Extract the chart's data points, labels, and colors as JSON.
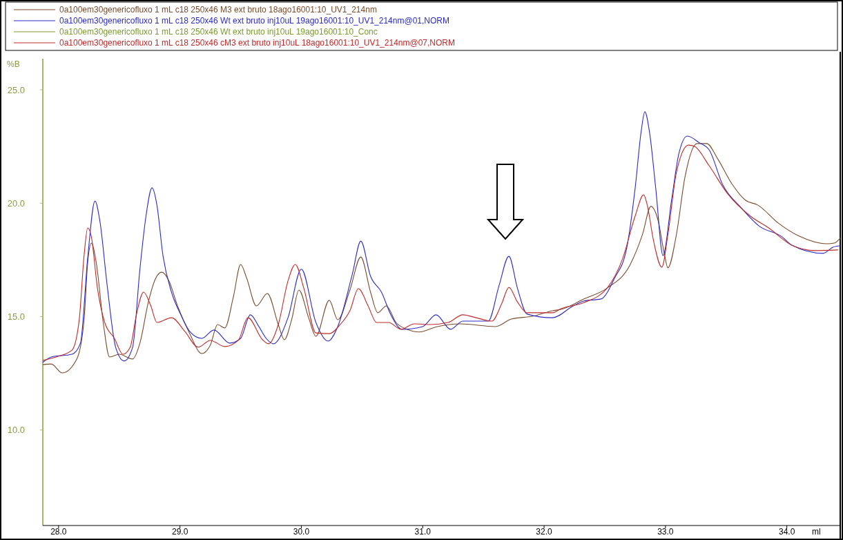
{
  "chart_data": {
    "type": "line",
    "xlabel": "ml",
    "ylabel": "%B",
    "xlim": [
      27.87,
      34.44
    ],
    "xticks": [
      {
        "value": 28,
        "label": "28.0"
      },
      {
        "value": 29,
        "label": "29.0"
      },
      {
        "value": 30,
        "label": "30.0"
      },
      {
        "value": 31,
        "label": "31.0"
      },
      {
        "value": 32,
        "label": "32.0"
      },
      {
        "value": 33,
        "label": "33.0"
      },
      {
        "value": 34,
        "label": "34.0"
      }
    ],
    "ylim": [
      5.79,
      26.37
    ],
    "yticks": [
      {
        "value": 10,
        "label": "10.0"
      },
      {
        "value": 15,
        "label": "15.0"
      },
      {
        "value": 20,
        "label": "20.0"
      },
      {
        "value": 25,
        "label": "25.0"
      }
    ],
    "legend": "top",
    "grid": false,
    "marker": "none",
    "line_style": "solid",
    "series": [
      {
        "name": "0a100em30genericofluxo 1 mL c18 250x46 M3 ext bruto 18ago16001:10_UV1_214nm",
        "color": "#7a4a2c",
        "x": [
          27.87,
          27.94,
          28.03,
          28.15,
          28.21,
          28.24,
          28.27,
          28.31,
          28.37,
          28.42,
          28.5,
          28.61,
          28.67,
          28.74,
          28.8,
          28.85,
          28.91,
          28.98,
          29.08,
          29.18,
          29.25,
          29.31,
          29.37,
          29.44,
          29.5,
          29.55,
          29.63,
          29.72,
          29.81,
          29.86,
          29.92,
          29.98,
          30.06,
          30.12,
          30.23,
          30.3,
          30.4,
          30.49,
          30.57,
          30.63,
          30.7,
          30.78,
          30.87,
          30.97,
          31.12,
          31.31,
          31.6,
          31.73,
          31.91,
          32.07,
          32.14,
          32.33,
          32.52,
          32.71,
          32.81,
          32.88,
          32.94,
          32.99,
          33.02,
          33.09,
          33.16,
          33.26,
          33.34,
          33.43,
          33.55,
          33.66,
          33.76,
          33.93,
          34.1,
          34.33,
          34.39,
          34.44
        ],
        "values": [
          12.88,
          12.91,
          12.52,
          13.13,
          14.86,
          17.39,
          18.24,
          17.39,
          14.65,
          13.22,
          13.34,
          13.13,
          13.83,
          15.65,
          16.69,
          16.96,
          16.57,
          15.47,
          14.25,
          13.37,
          13.74,
          14.65,
          14.5,
          15.87,
          17.3,
          16.69,
          15.47,
          16.02,
          14.65,
          13.98,
          14.86,
          16.17,
          14.95,
          14.13,
          15.72,
          14.86,
          16.17,
          17.63,
          16.08,
          15.17,
          15.47,
          14.74,
          14.44,
          14.32,
          14.56,
          14.68,
          14.56,
          14.89,
          15.02,
          15.26,
          15.32,
          15.78,
          16.26,
          17.3,
          18.61,
          19.86,
          19.22,
          17.79,
          17.15,
          18.61,
          21.13,
          22.63,
          22.63,
          21.96,
          20.83,
          20.13,
          19.92,
          19.12,
          18.55,
          18.21,
          18.24,
          18.46
        ]
      },
      {
        "name": "0a100em30genericofluxo 1 mL c18 250x46 Wt ext bruto inj10uL 19ago16001:10_UV1_214nm@01,NORM",
        "color": "#2a2ac8",
        "x": [
          27.87,
          27.94,
          28.11,
          28.18,
          28.24,
          28.3,
          28.34,
          28.4,
          28.47,
          28.54,
          28.61,
          28.67,
          28.72,
          28.77,
          28.81,
          28.86,
          28.93,
          29.01,
          29.08,
          29.18,
          29.28,
          29.41,
          29.5,
          29.58,
          29.65,
          29.71,
          29.77,
          29.89,
          30.0,
          30.12,
          30.22,
          30.3,
          30.42,
          30.49,
          30.57,
          30.66,
          30.74,
          30.83,
          31.0,
          31.11,
          31.23,
          31.33,
          31.54,
          31.63,
          31.71,
          31.78,
          31.86,
          32.07,
          32.24,
          32.33,
          32.47,
          32.58,
          32.68,
          32.75,
          32.8,
          32.83,
          32.87,
          32.92,
          32.98,
          33.05,
          33.11,
          33.18,
          33.28,
          33.36,
          33.47,
          33.62,
          33.77,
          33.96,
          34.04,
          34.3,
          34.38,
          34.44
        ],
        "values": [
          12.98,
          13.22,
          13.34,
          13.83,
          17.6,
          20.1,
          19.22,
          16.39,
          13.65,
          13.04,
          13.65,
          17.09,
          19.43,
          20.68,
          19.92,
          17.69,
          16.08,
          15.05,
          14.35,
          14.04,
          14.41,
          13.83,
          14.04,
          15.08,
          14.56,
          14.04,
          13.8,
          14.95,
          17.09,
          14.74,
          13.92,
          14.56,
          16.87,
          18.33,
          16.78,
          16.08,
          15.05,
          14.44,
          14.56,
          15.08,
          14.44,
          14.8,
          14.8,
          16.39,
          17.66,
          16.26,
          15.11,
          14.95,
          15.47,
          15.69,
          15.78,
          16.69,
          18.0,
          20.65,
          23.17,
          24.03,
          23.08,
          20.65,
          17.69,
          20.13,
          22.17,
          22.96,
          22.66,
          22.35,
          20.83,
          19.82,
          19.0,
          18.52,
          18.15,
          17.79,
          18.06,
          18.12
        ]
      },
      {
        "name": "0a100em30genericofluxo 1 mL c18 250x46 Wt ext bruto inj10uL 19ago16001:10_Conc",
        "color": "#7a9a30"
      },
      {
        "name": "0a100em30genericofluxo 1 mL c18 250x46 cM3 ext bruto inj10uL 18ago16001:10_UV1_214nm@07,NORM",
        "color": "#c02a2a",
        "x": [
          27.87,
          27.98,
          28.11,
          28.17,
          28.21,
          28.24,
          28.27,
          28.32,
          28.38,
          28.46,
          28.53,
          28.59,
          28.64,
          28.7,
          28.76,
          28.81,
          28.93,
          29.04,
          29.15,
          29.25,
          29.37,
          29.48,
          29.56,
          29.68,
          29.73,
          29.81,
          29.89,
          29.95,
          30.02,
          30.12,
          30.23,
          30.32,
          30.4,
          30.47,
          30.55,
          30.62,
          30.72,
          30.82,
          30.93,
          31.06,
          31.21,
          31.33,
          31.44,
          31.57,
          31.65,
          31.71,
          31.78,
          31.86,
          32.07,
          32.14,
          32.33,
          32.52,
          32.65,
          32.75,
          32.82,
          32.85,
          32.9,
          32.97,
          33.02,
          33.09,
          33.19,
          33.24,
          33.36,
          33.51,
          33.7,
          33.85,
          34.04,
          34.23,
          34.42
        ],
        "values": [
          13.07,
          13.22,
          13.52,
          14.86,
          17.69,
          18.91,
          18.52,
          16.26,
          14.74,
          14.04,
          13.34,
          13.65,
          15.05,
          16.08,
          15.47,
          14.74,
          14.95,
          14.35,
          13.65,
          13.95,
          13.68,
          13.95,
          14.95,
          13.98,
          13.8,
          14.65,
          16.57,
          17.3,
          16.26,
          14.28,
          14.25,
          14.65,
          15.26,
          16.23,
          15.47,
          14.74,
          14.74,
          14.44,
          14.68,
          14.65,
          14.74,
          15.08,
          14.95,
          14.8,
          15.56,
          16.29,
          15.65,
          15.17,
          15.17,
          15.35,
          15.62,
          16.26,
          17.6,
          19.43,
          20.37,
          19.92,
          18.39,
          17.18,
          18.61,
          21.35,
          22.56,
          22.5,
          21.65,
          20.43,
          19.43,
          18.91,
          18.15,
          17.91,
          17.94
        ]
      }
    ]
  }
}
